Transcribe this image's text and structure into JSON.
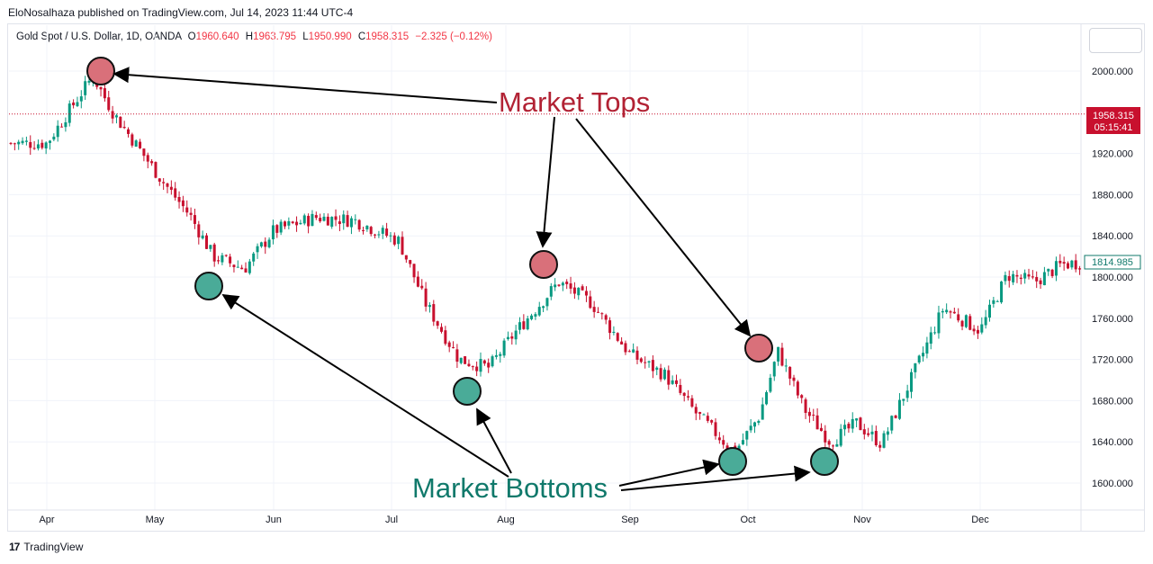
{
  "publisher": "EloNosalhaza published on TradingView.com, Jul 14, 2023 11:44 UTC-4",
  "legend": {
    "symbol": "Gold Spot / U.S. Dollar, 1D, OANDA",
    "o_label": "O",
    "o_value": "1960.640",
    "h_label": "H",
    "h_value": "1963.795",
    "l_label": "L",
    "l_value": "1950.990",
    "c_label": "C",
    "c_value": "1958.315",
    "change": "−2.325 (−0.12%)"
  },
  "footer": {
    "brand": "TradingView"
  },
  "colors": {
    "up": "#089981",
    "down": "#c8102e",
    "top_marker": "#d9707a",
    "bottom_marker": "#4aab98",
    "last_price": "#c8102e"
  },
  "chart_data": {
    "type": "candlestick",
    "y_ticks": [
      "1600.000",
      "1640.000",
      "1680.000",
      "1720.000",
      "1760.000",
      "1800.000",
      "1840.000",
      "1880.000",
      "1920.000",
      "2000.000"
    ],
    "ylim": [
      1576,
      2040
    ],
    "x_ticks": [
      "Apr",
      "May",
      "Jun",
      "Jul",
      "Aug",
      "Sep",
      "Oct",
      "Nov",
      "Dec"
    ],
    "last_price": {
      "value": "1958.315",
      "countdown": "05:15:41"
    },
    "crosshair_price": "1814.985",
    "annotations": {
      "tops_label": "Market Tops",
      "bottoms_label": "Market Bottoms"
    },
    "anchors": [
      {
        "date": "Apr 1",
        "close": 1930
      },
      {
        "date": "Apr 14",
        "close": 1995
      },
      {
        "date": "Apr 20",
        "close": 1958
      },
      {
        "date": "May 3",
        "close": 1893
      },
      {
        "date": "May 10",
        "close": 1860
      },
      {
        "date": "May 16",
        "close": 1820
      },
      {
        "date": "May 24",
        "close": 1808
      },
      {
        "date": "Jun 1",
        "close": 1845
      },
      {
        "date": "Jun 12",
        "close": 1858
      },
      {
        "date": "Jun 22",
        "close": 1855
      },
      {
        "date": "Jul 3",
        "close": 1835
      },
      {
        "date": "Jul 10",
        "close": 1775
      },
      {
        "date": "Jul 19",
        "close": 1720
      },
      {
        "date": "Jul 27",
        "close": 1712
      },
      {
        "date": "Aug 3",
        "close": 1745
      },
      {
        "date": "Aug 14",
        "close": 1795
      },
      {
        "date": "Aug 22",
        "close": 1775
      },
      {
        "date": "Sep 1",
        "close": 1725
      },
      {
        "date": "Sep 10",
        "close": 1705
      },
      {
        "date": "Sep 18",
        "close": 1668
      },
      {
        "date": "Sep 28",
        "close": 1630
      },
      {
        "date": "Oct 4",
        "close": 1665
      },
      {
        "date": "Oct 9",
        "close": 1728
      },
      {
        "date": "Oct 16",
        "close": 1672
      },
      {
        "date": "Oct 23",
        "close": 1640
      },
      {
        "date": "Oct 30",
        "close": 1658
      },
      {
        "date": "Nov 6",
        "close": 1638
      },
      {
        "date": "Nov 15",
        "close": 1712
      },
      {
        "date": "Nov 22",
        "close": 1770
      },
      {
        "date": "Dec 1",
        "close": 1748
      },
      {
        "date": "Dec 8",
        "close": 1802
      },
      {
        "date": "Dec 15",
        "close": 1795
      },
      {
        "date": "Dec 22",
        "close": 1812
      },
      {
        "date": "Dec 29",
        "close": 1815
      }
    ]
  }
}
